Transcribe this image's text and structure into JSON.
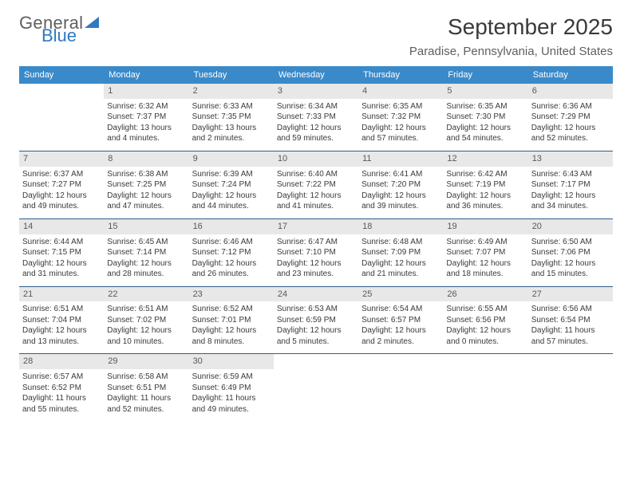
{
  "logo": {
    "word1": "General",
    "word2": "Blue"
  },
  "title": "September 2025",
  "location": "Paradise, Pennsylvania, United States",
  "headers": [
    "Sunday",
    "Monday",
    "Tuesday",
    "Wednesday",
    "Thursday",
    "Friday",
    "Saturday"
  ],
  "colors": {
    "header_bg": "#3a8aca",
    "header_fg": "#ffffff",
    "daynum_bg": "#e8e8e8",
    "rule": "#2f5d8d",
    "logo_blue": "#2f78c2",
    "logo_gray": "#5f5f5f"
  },
  "weeks": [
    {
      "nums": [
        "",
        "1",
        "2",
        "3",
        "4",
        "5",
        "6"
      ],
      "cells": [
        {
          "empty": true
        },
        {
          "sunrise": "Sunrise: 6:32 AM",
          "sunset": "Sunset: 7:37 PM",
          "day": "Daylight: 13 hours and 4 minutes."
        },
        {
          "sunrise": "Sunrise: 6:33 AM",
          "sunset": "Sunset: 7:35 PM",
          "day": "Daylight: 13 hours and 2 minutes."
        },
        {
          "sunrise": "Sunrise: 6:34 AM",
          "sunset": "Sunset: 7:33 PM",
          "day": "Daylight: 12 hours and 59 minutes."
        },
        {
          "sunrise": "Sunrise: 6:35 AM",
          "sunset": "Sunset: 7:32 PM",
          "day": "Daylight: 12 hours and 57 minutes."
        },
        {
          "sunrise": "Sunrise: 6:35 AM",
          "sunset": "Sunset: 7:30 PM",
          "day": "Daylight: 12 hours and 54 minutes."
        },
        {
          "sunrise": "Sunrise: 6:36 AM",
          "sunset": "Sunset: 7:29 PM",
          "day": "Daylight: 12 hours and 52 minutes."
        }
      ]
    },
    {
      "nums": [
        "7",
        "8",
        "9",
        "10",
        "11",
        "12",
        "13"
      ],
      "cells": [
        {
          "sunrise": "Sunrise: 6:37 AM",
          "sunset": "Sunset: 7:27 PM",
          "day": "Daylight: 12 hours and 49 minutes."
        },
        {
          "sunrise": "Sunrise: 6:38 AM",
          "sunset": "Sunset: 7:25 PM",
          "day": "Daylight: 12 hours and 47 minutes."
        },
        {
          "sunrise": "Sunrise: 6:39 AM",
          "sunset": "Sunset: 7:24 PM",
          "day": "Daylight: 12 hours and 44 minutes."
        },
        {
          "sunrise": "Sunrise: 6:40 AM",
          "sunset": "Sunset: 7:22 PM",
          "day": "Daylight: 12 hours and 41 minutes."
        },
        {
          "sunrise": "Sunrise: 6:41 AM",
          "sunset": "Sunset: 7:20 PM",
          "day": "Daylight: 12 hours and 39 minutes."
        },
        {
          "sunrise": "Sunrise: 6:42 AM",
          "sunset": "Sunset: 7:19 PM",
          "day": "Daylight: 12 hours and 36 minutes."
        },
        {
          "sunrise": "Sunrise: 6:43 AM",
          "sunset": "Sunset: 7:17 PM",
          "day": "Daylight: 12 hours and 34 minutes."
        }
      ]
    },
    {
      "nums": [
        "14",
        "15",
        "16",
        "17",
        "18",
        "19",
        "20"
      ],
      "cells": [
        {
          "sunrise": "Sunrise: 6:44 AM",
          "sunset": "Sunset: 7:15 PM",
          "day": "Daylight: 12 hours and 31 minutes."
        },
        {
          "sunrise": "Sunrise: 6:45 AM",
          "sunset": "Sunset: 7:14 PM",
          "day": "Daylight: 12 hours and 28 minutes."
        },
        {
          "sunrise": "Sunrise: 6:46 AM",
          "sunset": "Sunset: 7:12 PM",
          "day": "Daylight: 12 hours and 26 minutes."
        },
        {
          "sunrise": "Sunrise: 6:47 AM",
          "sunset": "Sunset: 7:10 PM",
          "day": "Daylight: 12 hours and 23 minutes."
        },
        {
          "sunrise": "Sunrise: 6:48 AM",
          "sunset": "Sunset: 7:09 PM",
          "day": "Daylight: 12 hours and 21 minutes."
        },
        {
          "sunrise": "Sunrise: 6:49 AM",
          "sunset": "Sunset: 7:07 PM",
          "day": "Daylight: 12 hours and 18 minutes."
        },
        {
          "sunrise": "Sunrise: 6:50 AM",
          "sunset": "Sunset: 7:06 PM",
          "day": "Daylight: 12 hours and 15 minutes."
        }
      ]
    },
    {
      "nums": [
        "21",
        "22",
        "23",
        "24",
        "25",
        "26",
        "27"
      ],
      "cells": [
        {
          "sunrise": "Sunrise: 6:51 AM",
          "sunset": "Sunset: 7:04 PM",
          "day": "Daylight: 12 hours and 13 minutes."
        },
        {
          "sunrise": "Sunrise: 6:51 AM",
          "sunset": "Sunset: 7:02 PM",
          "day": "Daylight: 12 hours and 10 minutes."
        },
        {
          "sunrise": "Sunrise: 6:52 AM",
          "sunset": "Sunset: 7:01 PM",
          "day": "Daylight: 12 hours and 8 minutes."
        },
        {
          "sunrise": "Sunrise: 6:53 AM",
          "sunset": "Sunset: 6:59 PM",
          "day": "Daylight: 12 hours and 5 minutes."
        },
        {
          "sunrise": "Sunrise: 6:54 AM",
          "sunset": "Sunset: 6:57 PM",
          "day": "Daylight: 12 hours and 2 minutes."
        },
        {
          "sunrise": "Sunrise: 6:55 AM",
          "sunset": "Sunset: 6:56 PM",
          "day": "Daylight: 12 hours and 0 minutes."
        },
        {
          "sunrise": "Sunrise: 6:56 AM",
          "sunset": "Sunset: 6:54 PM",
          "day": "Daylight: 11 hours and 57 minutes."
        }
      ]
    },
    {
      "nums": [
        "28",
        "29",
        "30",
        "",
        "",
        "",
        ""
      ],
      "cells": [
        {
          "sunrise": "Sunrise: 6:57 AM",
          "sunset": "Sunset: 6:52 PM",
          "day": "Daylight: 11 hours and 55 minutes."
        },
        {
          "sunrise": "Sunrise: 6:58 AM",
          "sunset": "Sunset: 6:51 PM",
          "day": "Daylight: 11 hours and 52 minutes."
        },
        {
          "sunrise": "Sunrise: 6:59 AM",
          "sunset": "Sunset: 6:49 PM",
          "day": "Daylight: 11 hours and 49 minutes."
        },
        {
          "empty": true
        },
        {
          "empty": true
        },
        {
          "empty": true
        },
        {
          "empty": true
        }
      ]
    }
  ]
}
